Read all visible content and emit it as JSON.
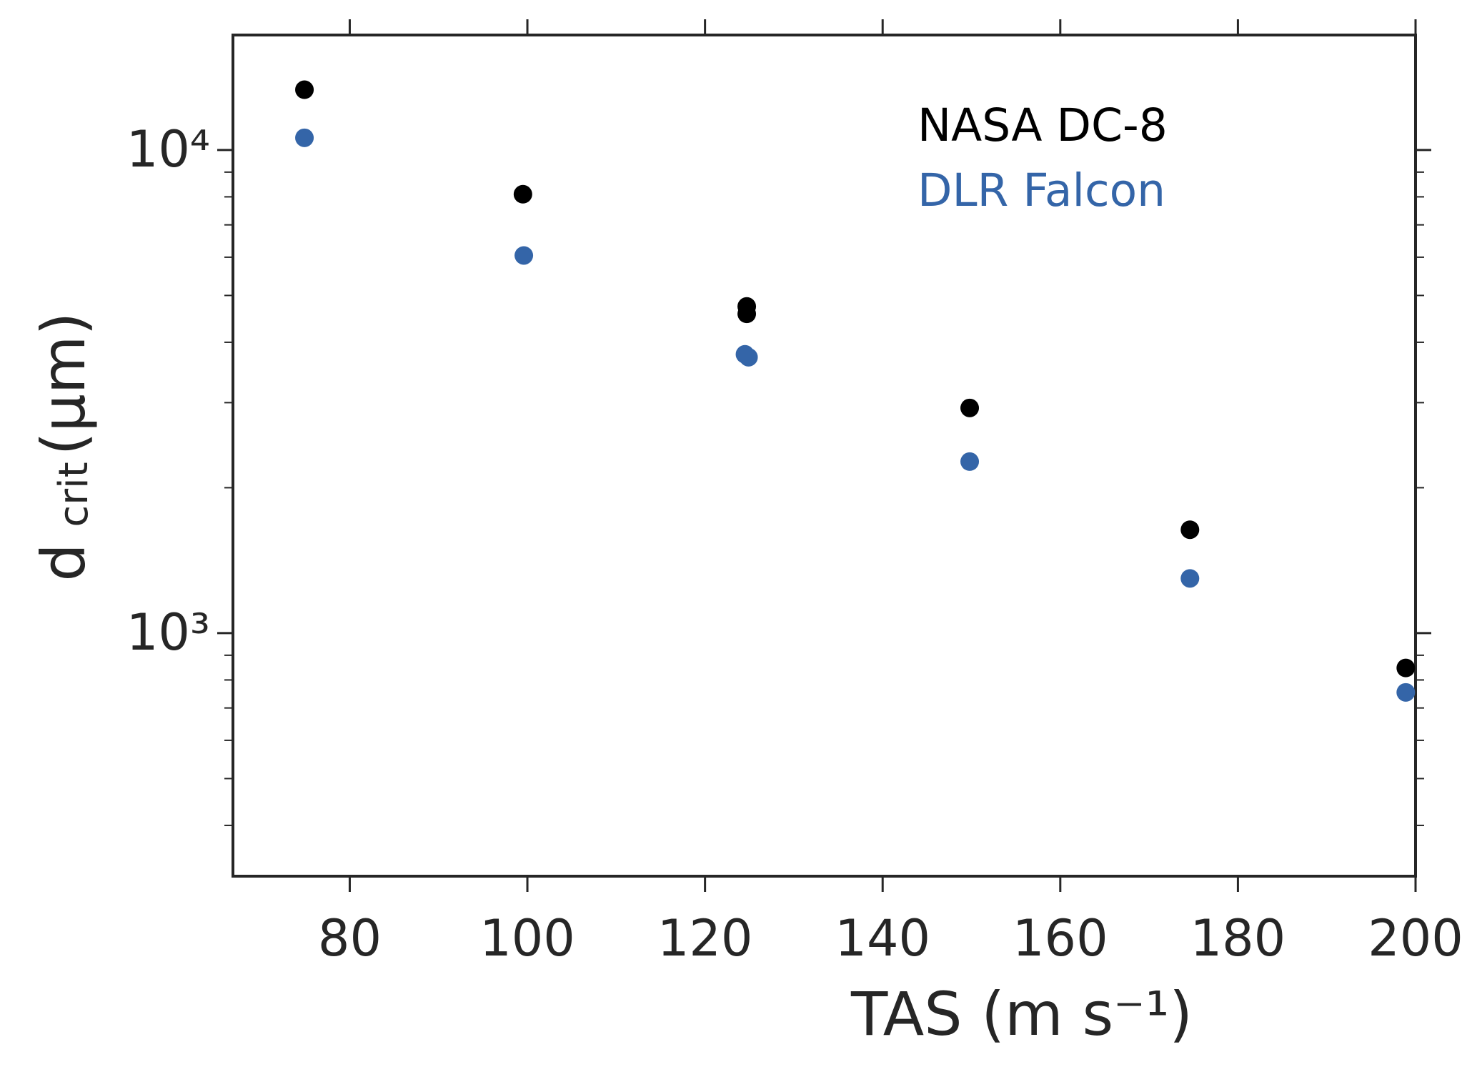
{
  "chart_data": {
    "type": "scatter",
    "xlabel": "TAS  (m s⁻¹)",
    "ylabel": "d",
    "ylabel_sub": "crit",
    "ylabel_unit": "(μm)",
    "xlim": [
      66.85,
      200
    ],
    "xticks": [
      80,
      100,
      120,
      140,
      160,
      180,
      200
    ],
    "ylim": [
      314,
      17300
    ],
    "ylog": true,
    "yticks": [
      {
        "value": 1000,
        "label": "10³"
      },
      {
        "value": 10000,
        "label": "10⁴"
      }
    ],
    "yminorticks": [
      400,
      500,
      600,
      700,
      800,
      900,
      2000,
      3000,
      4000,
      5000,
      6000,
      7000,
      8000,
      9000
    ],
    "legend": "upper right",
    "series": [
      {
        "name": "NASA DC-8",
        "color": "#000000",
        "x": [
          74.9,
          99.5,
          124.7,
          124.7,
          149.8,
          174.6,
          198.9
        ],
        "values": [
          13330,
          8100,
          4745,
          4580,
          2925,
          1637,
          847
        ]
      },
      {
        "name": "DLR Falcon",
        "color": "#3465a8",
        "x": [
          74.9,
          99.6,
          124.5,
          124.9,
          149.8,
          174.6,
          198.9
        ],
        "values": [
          10600,
          6050,
          3777,
          3725,
          2265,
          1298,
          754
        ]
      }
    ]
  }
}
